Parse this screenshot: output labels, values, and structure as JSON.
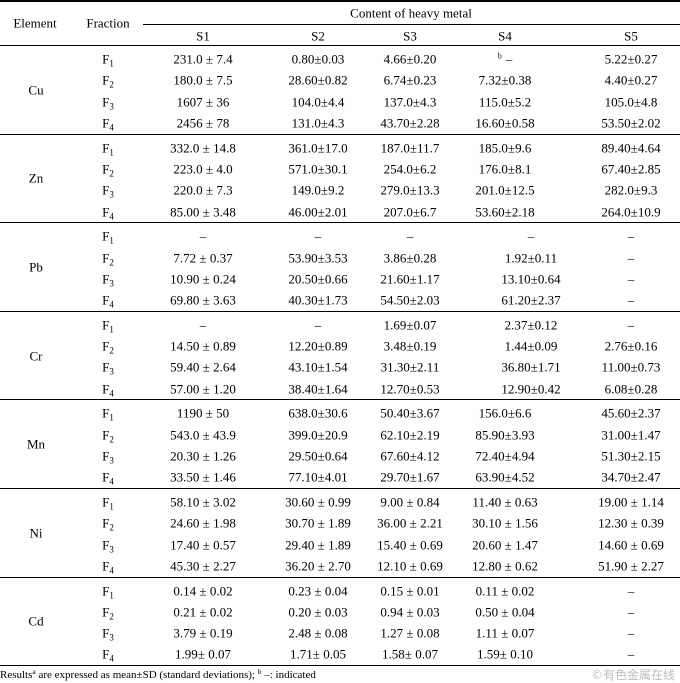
{
  "table": {
    "headers": {
      "element": "Element",
      "fraction": "Fraction",
      "group": "Content of heavy metal",
      "samples": [
        "S1",
        "S2",
        "S3",
        "S4",
        "S5"
      ]
    },
    "groups": [
      {
        "element": "Cu",
        "rows": [
          {
            "fraction": {
              "base": "F",
              "sub": "1"
            },
            "values": [
              "231.0 ± 7.4",
              "0.80±0.03",
              "4.66±0.20",
              {
                "sup": "b",
                "value": "–"
              },
              "5.22±0.27"
            ]
          },
          {
            "fraction": {
              "base": "F",
              "sub": "2"
            },
            "values": [
              "180.0 ± 7.5",
              "28.60±0.82",
              "6.74±0.23",
              "7.32±0.38",
              "4.40±0.27"
            ]
          },
          {
            "fraction": {
              "base": "F",
              "sub": "3"
            },
            "values": [
              "1607 ± 36",
              "104.0±4.4",
              "137.0±4.3",
              "115.0±5.2",
              "105.0±4.8"
            ]
          },
          {
            "fraction": {
              "base": "F",
              "sub": "4"
            },
            "values": [
              "2456 ± 78",
              "131.0±4.3",
              "43.70±2.28",
              "16.60±0.58",
              "53.50±2.02"
            ]
          }
        ]
      },
      {
        "element": "Zn",
        "rows": [
          {
            "fraction": {
              "base": "F",
              "sub": "1"
            },
            "values": [
              "332.0 ± 14.8",
              "361.0±17.0",
              "187.0±11.7",
              "185.0±9.6",
              "89.40±4.64"
            ]
          },
          {
            "fraction": {
              "base": "F",
              "sub": "2"
            },
            "values": [
              "223.0 ± 4.0",
              "571.0±30.1",
              "254.0±6.2",
              "176.0±8.1",
              "67.40±2.85"
            ]
          },
          {
            "fraction": {
              "base": "F",
              "sub": "3"
            },
            "values": [
              "220.0 ± 7.3",
              "149.0±9.2",
              "279.0±13.3",
              "201.0±12.5",
              "282.0±9.3"
            ]
          },
          {
            "fraction": {
              "base": "F",
              "sub": "4"
            },
            "values": [
              "85.00 ± 3.48",
              "46.00±2.01",
              "207.0±6.7",
              "53.60±2.18",
              "264.0±10.9"
            ]
          }
        ]
      },
      {
        "element": "Pb",
        "rows": [
          {
            "fraction": {
              "base": "F",
              "sub": "1"
            },
            "values": [
              "–",
              "–",
              "–",
              "–",
              "–"
            ]
          },
          {
            "fraction": {
              "base": "F",
              "sub": "2"
            },
            "values": [
              "7.72 ± 0.37",
              "53.90±3.53",
              "3.86±0.28",
              "1.92±0.11",
              "–"
            ]
          },
          {
            "fraction": {
              "base": "F",
              "sub": "3"
            },
            "values": [
              "10.90 ± 0.24",
              "20.50±0.66",
              "21.60±1.17",
              "13.10±0.64",
              "–"
            ]
          },
          {
            "fraction": {
              "base": "F",
              "sub": "4"
            },
            "values": [
              "69.80 ± 3.63",
              "40.30±1.73",
              "54.50±2.03",
              "61.20±2.37",
              "–"
            ]
          }
        ]
      },
      {
        "element": "Cr",
        "rows": [
          {
            "fraction": {
              "base": "F",
              "sub": "1"
            },
            "values": [
              "–",
              "–",
              "1.69±0.07",
              "2.37±0.12",
              "–"
            ]
          },
          {
            "fraction": {
              "base": "F",
              "sub": "2"
            },
            "values": [
              "14.50 ± 0.89",
              "12.20±0.89",
              "3.48±0.19",
              "1.44±0.09",
              "2.76±0.16"
            ]
          },
          {
            "fraction": {
              "base": "F",
              "sub": "3"
            },
            "values": [
              "59.40 ± 2.64",
              "43.10±1.54",
              "31.30±2.11",
              "36.80±1.71",
              "11.00±0.73"
            ]
          },
          {
            "fraction": {
              "base": "F",
              "sub": "4"
            },
            "values": [
              "57.00 ± 1.20",
              "38.40±1.64",
              "12.70±0.53",
              "12.90±0.42",
              "6.08±0.28"
            ]
          }
        ]
      },
      {
        "element": "Mn",
        "rows": [
          {
            "fraction": {
              "base": "F",
              "sub": "1"
            },
            "values": [
              "1190 ± 50",
              "638.0±30.6",
              "50.40±3.67",
              "156.0±6.6",
              "45.60±2.37"
            ]
          },
          {
            "fraction": {
              "base": "F",
              "sub": "2"
            },
            "values": [
              "543.0 ± 43.9",
              "399.0±20.9",
              "62.10±2.19",
              "85.90±3.93",
              "31.00±1.47"
            ]
          },
          {
            "fraction": {
              "base": "F",
              "sub": "3"
            },
            "values": [
              "20.30 ± 1.26",
              "29.50±0.64",
              "67.60±4.12",
              "72.40±4.94",
              "51.30±2.15"
            ]
          },
          {
            "fraction": {
              "base": "F",
              "sub": "4"
            },
            "values": [
              "33.50 ± 1.46",
              "77.10±4.01",
              "29.70±1.67",
              "63.90±4.52",
              "34.70±2.47"
            ]
          }
        ]
      },
      {
        "element": "Ni",
        "rows": [
          {
            "fraction": {
              "base": "F",
              "sub": "1"
            },
            "values": [
              "58.10 ± 3.02",
              "30.60 ± 0.99",
              "9.00 ± 0.84",
              "11.40 ± 0.63",
              "19.00 ± 1.14"
            ]
          },
          {
            "fraction": {
              "base": "F",
              "sub": "2"
            },
            "values": [
              "24.60 ± 1.98",
              "30.70 ± 1.89",
              "36.00 ± 2.21",
              "30.10 ± 1.56",
              "12.30 ± 0.39"
            ]
          },
          {
            "fraction": {
              "base": "F",
              "sub": "3"
            },
            "values": [
              "17.40 ± 0.57",
              "29.40 ± 1.89",
              "15.40 ± 0.69",
              "20.60 ± 1.47",
              "14.60 ± 0.69"
            ]
          },
          {
            "fraction": {
              "base": "F",
              "sub": "4"
            },
            "values": [
              "45.30 ± 2.27",
              "36.20 ± 2.70",
              "12.10 ± 0.69",
              "12.80 ± 0.62",
              "51.90 ± 2.27"
            ]
          }
        ]
      },
      {
        "element": "Cd",
        "rows": [
          {
            "fraction": {
              "base": "F",
              "sub": "1"
            },
            "values": [
              "0.14 ± 0.02",
              "0.23 ± 0.04",
              "0.15 ± 0.01",
              "0.11 ± 0.02",
              "–"
            ]
          },
          {
            "fraction": {
              "base": "F",
              "sub": "2"
            },
            "values": [
              "0.21 ± 0.02",
              "0.20 ± 0.03",
              "0.94 ± 0.03",
              "0.50 ± 0.04",
              "–"
            ]
          },
          {
            "fraction": {
              "base": "F",
              "sub": "3"
            },
            "values": [
              "3.79 ± 0.19",
              "2.48 ± 0.08",
              "1.27 ± 0.08",
              "1.11 ± 0.07",
              "–"
            ]
          },
          {
            "fraction": {
              "base": "F",
              "sub": "4"
            },
            "values": [
              "1.99± 0.07",
              "1.71± 0.05",
              "1.58± 0.07",
              "1.59± 0.10",
              "–"
            ]
          }
        ]
      }
    ]
  },
  "footnote": {
    "text1": "Results",
    "sup_a": "a",
    "text2": " are expressed as mean±SD (standard deviations); ",
    "sup_b": "b",
    "text3": " –: indicated"
  },
  "watermark": "©有色金属在线"
}
